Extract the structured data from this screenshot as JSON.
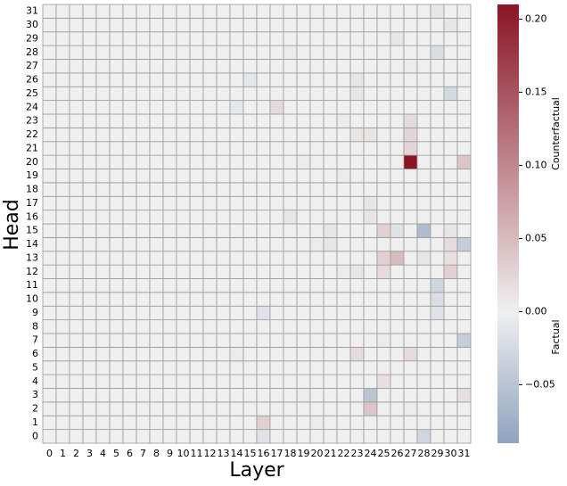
{
  "chart_data": {
    "type": "heatmap",
    "xlabel": "Layer",
    "ylabel": "Head",
    "x": [
      0,
      1,
      2,
      3,
      4,
      5,
      6,
      7,
      8,
      9,
      10,
      11,
      12,
      13,
      14,
      15,
      16,
      17,
      18,
      19,
      20,
      21,
      22,
      23,
      24,
      25,
      26,
      27,
      28,
      29,
      30,
      31
    ],
    "y": [
      0,
      1,
      2,
      3,
      4,
      5,
      6,
      7,
      8,
      9,
      10,
      11,
      12,
      13,
      14,
      15,
      16,
      17,
      18,
      19,
      20,
      21,
      22,
      23,
      24,
      25,
      26,
      27,
      28,
      29,
      30,
      31
    ],
    "values": [
      [
        0,
        0,
        0,
        0,
        0,
        0,
        0,
        0,
        0,
        0,
        0,
        0,
        0,
        0,
        0,
        0,
        -0.015,
        0,
        0,
        0,
        0,
        0,
        0,
        0,
        0,
        0,
        0,
        0,
        -0.03,
        0,
        0,
        0
      ],
      [
        0,
        0,
        0,
        0,
        0,
        0,
        0,
        0,
        0,
        0,
        0,
        0,
        0,
        0,
        0,
        0,
        0.03,
        0,
        0,
        0,
        0.005,
        0,
        0,
        0,
        0,
        0,
        0,
        0,
        0,
        0,
        0,
        0
      ],
      [
        0,
        0,
        0,
        0,
        0,
        0,
        0,
        0,
        0,
        0,
        0,
        0,
        0,
        0,
        0,
        0,
        0,
        0,
        0,
        0,
        0,
        0,
        0,
        0,
        0.04,
        0,
        0,
        0.005,
        0,
        0,
        0,
        0
      ],
      [
        0,
        0,
        0,
        0,
        0,
        0,
        0,
        0,
        0,
        0,
        0,
        0,
        0,
        0,
        0,
        0,
        0,
        0,
        0,
        -0.005,
        0,
        0,
        0,
        0,
        -0.05,
        0,
        0,
        0,
        0,
        0,
        0,
        0.015
      ],
      [
        0,
        0,
        0,
        0,
        0,
        0,
        0,
        0,
        0,
        0,
        0,
        0,
        0,
        0,
        0,
        0,
        0,
        0,
        0,
        0,
        0,
        0,
        0,
        0,
        0,
        0.015,
        0,
        0,
        0,
        0,
        0,
        0
      ],
      [
        0,
        0,
        0,
        0,
        0,
        0,
        0,
        0,
        0,
        0,
        0,
        0,
        0,
        0,
        0,
        0,
        0,
        0,
        0,
        0,
        0,
        0,
        0,
        0,
        0,
        0,
        0,
        0,
        0,
        0,
        0,
        0
      ],
      [
        0,
        0,
        0,
        0,
        0,
        0,
        0,
        0,
        0,
        0,
        0,
        0,
        0,
        0,
        0.005,
        0,
        0,
        0,
        0,
        0,
        0,
        0,
        0,
        0.02,
        0,
        0,
        0,
        0.02,
        0,
        0,
        0,
        0
      ],
      [
        0,
        0,
        0,
        0,
        0,
        0,
        0,
        0,
        0,
        0,
        0,
        0,
        0,
        0,
        0,
        0,
        0,
        0,
        0,
        0,
        0,
        0,
        0,
        0,
        0,
        0.005,
        0,
        0,
        0,
        0,
        0,
        -0.04
      ],
      [
        0,
        0,
        0,
        0,
        0,
        0,
        0,
        0,
        0,
        0,
        0,
        0,
        0,
        0,
        0,
        0,
        0,
        0,
        0,
        0,
        0,
        0,
        0,
        0,
        0,
        0,
        0,
        0,
        0,
        0,
        0,
        0
      ],
      [
        0,
        0,
        0,
        0,
        0,
        0,
        0,
        0,
        0,
        0,
        0,
        0,
        0,
        0,
        0,
        0,
        -0.015,
        0,
        0,
        0,
        0,
        0,
        0,
        0,
        0,
        0,
        0,
        0,
        0,
        -0.015,
        0,
        0
      ],
      [
        0,
        0,
        0,
        0,
        0,
        0,
        0,
        0,
        0,
        0,
        0,
        0,
        0,
        0,
        0,
        0,
        0,
        0,
        0,
        0,
        0,
        0,
        0,
        0,
        0,
        0,
        0,
        0,
        0,
        -0.02,
        0,
        0
      ],
      [
        0,
        0,
        0,
        0,
        0,
        0,
        0,
        0,
        0,
        0,
        0,
        0,
        0,
        0,
        0,
        0,
        0,
        0,
        0,
        0,
        0,
        0,
        0,
        0,
        0,
        0,
        0,
        0,
        0,
        -0.03,
        0,
        0
      ],
      [
        0,
        0,
        0,
        0,
        0,
        0,
        0,
        0,
        0,
        0,
        0,
        0,
        0,
        0,
        0,
        0,
        0,
        0,
        0,
        0,
        0,
        0,
        0.005,
        0.01,
        0,
        0.02,
        0,
        0,
        0,
        0,
        0.03,
        0
      ],
      [
        0,
        0,
        0,
        0,
        0,
        0,
        0,
        0,
        0,
        0,
        0,
        0,
        0,
        0,
        0,
        0,
        0,
        0,
        0,
        0,
        0,
        0,
        0,
        0,
        0,
        0.03,
        0.05,
        0,
        0.01,
        0,
        0.015,
        0
      ],
      [
        0,
        0,
        0,
        0,
        0,
        0,
        0,
        0,
        0,
        0,
        0,
        0,
        0,
        0,
        0,
        0,
        0,
        0,
        0,
        0,
        -0.005,
        -0.01,
        0,
        0,
        0,
        0,
        0,
        0,
        0,
        0,
        0.02,
        -0.04
      ],
      [
        0,
        0,
        0,
        0,
        0,
        0,
        0,
        0,
        0,
        0,
        0,
        0,
        0,
        0,
        0,
        0,
        0,
        0,
        0,
        0,
        0,
        -0.01,
        0,
        0,
        0,
        0.03,
        -0.015,
        0,
        -0.06,
        0,
        0.01,
        0
      ],
      [
        0,
        0,
        0,
        0,
        0,
        0,
        0,
        0,
        0,
        0,
        0,
        0,
        0,
        0,
        0,
        0,
        0,
        0,
        0.01,
        0,
        0,
        0,
        0,
        0,
        0.01,
        0,
        0,
        0,
        0,
        0,
        0,
        0
      ],
      [
        0,
        0,
        0,
        0,
        0,
        0,
        0,
        0,
        0,
        0,
        0,
        0,
        0,
        0,
        0,
        0,
        0,
        0,
        0,
        0,
        0,
        0,
        0,
        0,
        0.01,
        0,
        0,
        0,
        0,
        0,
        0,
        0
      ],
      [
        0,
        0,
        0,
        0,
        0,
        0,
        0,
        0,
        0,
        0,
        0,
        0,
        0,
        0,
        0,
        0,
        0,
        0,
        0,
        0,
        0,
        0,
        0,
        0,
        0,
        0,
        0,
        0,
        0,
        0,
        0,
        0
      ],
      [
        0,
        0,
        0,
        0,
        0,
        0,
        0,
        0,
        0,
        0,
        0,
        0,
        0,
        0,
        0,
        0,
        0,
        0,
        0,
        0,
        0,
        0,
        0.005,
        0,
        0,
        0,
        0,
        0,
        0,
        0,
        0,
        0
      ],
      [
        0,
        0,
        0,
        0,
        0,
        0,
        0,
        0,
        0,
        0,
        0,
        0,
        0,
        0,
        0,
        0,
        0,
        0,
        0,
        -0.005,
        0,
        0,
        0,
        0,
        0,
        0,
        0,
        0.21,
        0,
        0,
        0,
        0.04
      ],
      [
        0,
        0,
        0,
        0,
        0,
        0,
        0,
        0,
        0,
        0,
        0,
        0,
        0,
        0,
        0,
        0,
        0,
        0,
        0,
        0,
        0,
        0,
        0,
        0,
        0,
        0,
        0,
        0.025,
        0,
        0,
        0,
        0
      ],
      [
        0,
        0,
        0,
        0,
        0,
        0,
        0,
        0,
        0,
        0,
        0,
        0,
        0,
        0,
        0,
        0,
        0,
        0,
        0,
        0,
        0,
        0,
        0,
        0.01,
        0.01,
        0,
        0,
        0.025,
        0,
        0,
        0,
        0
      ],
      [
        0,
        0,
        0,
        0,
        0,
        0,
        0,
        0,
        0,
        0,
        0,
        0,
        0,
        0,
        0,
        0,
        0,
        0,
        0,
        0,
        0,
        0,
        -0.005,
        0,
        0,
        0,
        0,
        0.02,
        0,
        0,
        0,
        0
      ],
      [
        0,
        0,
        0,
        0,
        0,
        0,
        0,
        0,
        0,
        0,
        0,
        0,
        0,
        0,
        -0.01,
        0,
        0,
        0.02,
        0,
        0,
        0,
        0,
        0,
        0,
        0,
        0,
        0,
        0,
        0,
        0,
        0,
        0
      ],
      [
        0,
        0,
        0,
        0,
        0,
        0,
        0,
        0,
        0,
        0,
        0,
        0,
        0,
        0,
        0,
        0,
        0,
        0,
        0,
        0,
        0,
        0,
        0,
        -0.01,
        0,
        0,
        0,
        0,
        0,
        0,
        -0.025,
        0
      ],
      [
        0,
        0,
        0,
        0,
        0,
        0,
        0,
        0,
        0,
        0,
        0,
        0,
        0,
        0,
        0,
        -0.01,
        0,
        0,
        0,
        0,
        0,
        0,
        0,
        -0.01,
        0,
        0,
        0,
        0,
        0,
        0,
        0,
        0
      ],
      [
        0,
        0,
        0,
        0,
        0,
        0,
        0,
        0,
        0,
        0,
        0,
        0,
        0,
        0,
        0,
        0,
        0,
        0,
        0,
        0,
        0,
        0,
        0,
        0,
        0,
        0,
        0,
        -0.005,
        0,
        0,
        0,
        0
      ],
      [
        0,
        0,
        0,
        0,
        0,
        0,
        0,
        0,
        0,
        0,
        0,
        0,
        0,
        0,
        0,
        0,
        0,
        0,
        0.005,
        0,
        0,
        0,
        0,
        0,
        0,
        0,
        0,
        0,
        0,
        -0.02,
        0,
        0
      ],
      [
        0,
        0,
        0,
        0,
        0,
        0,
        0,
        0,
        0,
        0,
        0,
        0,
        0,
        0,
        0,
        0,
        0,
        0,
        0,
        0,
        0,
        0,
        0,
        0,
        0,
        0,
        0.01,
        0,
        0,
        0,
        0,
        0
      ],
      [
        0,
        0,
        0,
        0,
        0,
        0,
        0,
        0,
        0,
        0,
        0,
        0,
        0,
        0,
        0,
        0,
        0,
        0,
        0,
        0,
        0,
        0,
        0,
        0,
        0,
        0,
        0,
        0,
        0,
        0,
        0.01,
        0
      ],
      [
        0,
        0,
        0,
        0,
        0,
        0,
        0,
        0,
        0,
        0,
        0,
        0,
        0,
        0,
        0,
        0,
        0,
        0,
        0,
        0,
        0,
        0,
        0,
        0,
        0,
        0,
        0,
        0,
        0,
        -0.01,
        0,
        0
      ]
    ],
    "zlim": [
      -0.09,
      0.21
    ],
    "zticks": [
      {
        "value": -0.05,
        "label": "−0.05"
      },
      {
        "value": 0,
        "label": "0.00"
      },
      {
        "value": 0.05,
        "label": "0.05"
      },
      {
        "value": 0.1,
        "label": "0.10"
      },
      {
        "value": 0.15,
        "label": "0.15"
      },
      {
        "value": 0.2,
        "label": "0.20"
      }
    ],
    "colorbar_labels": {
      "positive": "Counterfactual",
      "negative": "Factual"
    },
    "colors": {
      "negative": "#8fa3be",
      "zero": "#efefef",
      "positive": "#8b1525"
    }
  }
}
